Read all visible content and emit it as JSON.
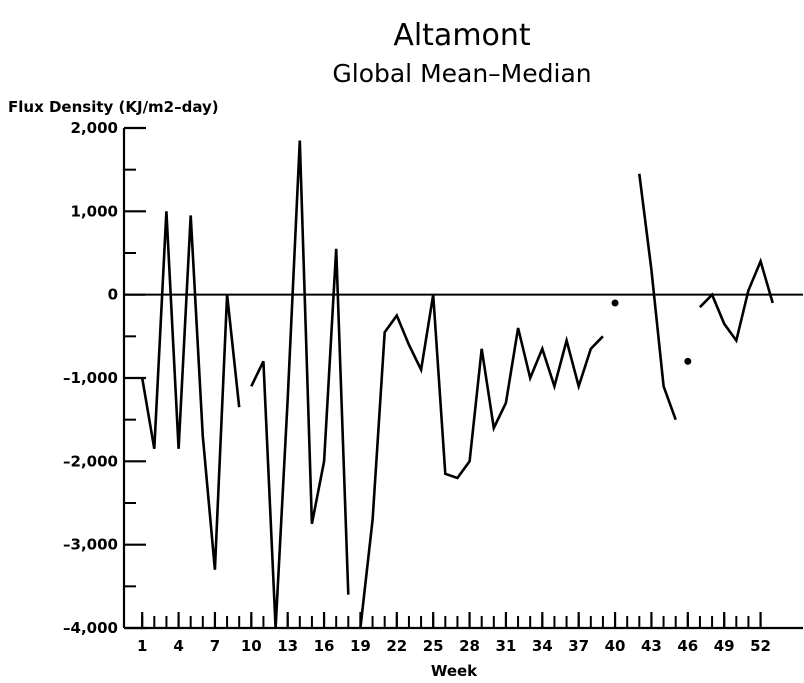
{
  "chart_data": {
    "type": "line",
    "title": "Altamont",
    "subtitle": "Global Mean–Median",
    "ylabel": "Flux Density (KJ/m2–day)",
    "xlabel": "Week",
    "xlim": [
      -0.5,
      55.5
    ],
    "ylim": [
      -4000,
      2000
    ],
    "y_ticks": [
      2000,
      1000,
      0,
      -1000,
      -2000,
      -3000,
      -4000
    ],
    "y_tick_labels": [
      "2,000",
      "1,000",
      "0",
      "–1,000",
      "–2,000",
      "–3,000",
      "–4,000"
    ],
    "x_ticks": [
      1,
      4,
      7,
      10,
      13,
      16,
      19,
      22,
      25,
      28,
      31,
      34,
      37,
      40,
      43,
      46,
      49,
      52
    ],
    "x_tick_labels": [
      "1",
      "4",
      "7",
      "10",
      "13",
      "16",
      "19",
      "22",
      "25",
      "28",
      "31",
      "34",
      "37",
      "40",
      "43",
      "46",
      "49",
      "52"
    ],
    "x_minor_ticks": [
      1,
      2,
      3,
      4,
      5,
      6,
      7,
      8,
      9,
      10,
      11,
      12,
      13,
      14,
      15,
      16,
      17,
      18,
      19,
      20,
      21,
      22,
      23,
      24,
      25,
      26,
      27,
      28,
      29,
      30,
      31,
      32,
      33,
      34,
      35,
      36,
      37,
      38,
      39,
      40,
      41,
      42,
      43,
      44,
      45,
      46,
      47,
      48,
      49,
      50,
      51,
      52
    ],
    "y_minor_ticks": [
      1500,
      500,
      -500,
      -1500,
      -2500,
      -3500
    ],
    "zero_line": true,
    "grid": false,
    "legend": "none",
    "line_color": "#000000",
    "series": [
      {
        "segments": [
          [
            [
              1,
              -1000
            ],
            [
              2,
              -1850
            ],
            [
              3,
              1000
            ],
            [
              4,
              -1850
            ],
            [
              5,
              950
            ],
            [
              6,
              -1700
            ],
            [
              7,
              -3300
            ],
            [
              8,
              0
            ],
            [
              9,
              -1350
            ]
          ],
          [
            [
              10,
              -1100
            ],
            [
              11,
              -800
            ],
            [
              12,
              -4000
            ],
            [
              13,
              -1250
            ],
            [
              14,
              1850
            ],
            [
              15,
              -2750
            ],
            [
              16,
              -2000
            ],
            [
              17,
              550
            ],
            [
              18,
              -3600
            ]
          ],
          [
            [
              19,
              -4000
            ],
            [
              20,
              -2700
            ],
            [
              21,
              -450
            ],
            [
              22,
              -250
            ],
            [
              23,
              -600
            ],
            [
              24,
              -900
            ],
            [
              25,
              0
            ],
            [
              26,
              -2150
            ],
            [
              27,
              -2200
            ],
            [
              28,
              -2000
            ],
            [
              29,
              -650
            ],
            [
              30,
              -1600
            ],
            [
              31,
              -1300
            ],
            [
              32,
              -400
            ],
            [
              33,
              -1000
            ],
            [
              34,
              -650
            ],
            [
              35,
              -1100
            ],
            [
              36,
              -550
            ],
            [
              37,
              -1100
            ],
            [
              38,
              -650
            ],
            [
              39,
              -500
            ]
          ],
          [
            [
              42,
              1450
            ],
            [
              43,
              300
            ],
            [
              44,
              -1100
            ],
            [
              45,
              -1500
            ]
          ],
          [
            [
              47,
              -150
            ],
            [
              48,
              0
            ],
            [
              49,
              -350
            ],
            [
              50,
              -550
            ],
            [
              51,
              50
            ],
            [
              52,
              400
            ],
            [
              53,
              -100
            ]
          ]
        ],
        "points": [
          [
            40,
            -100
          ],
          [
            46,
            -800
          ]
        ]
      }
    ]
  }
}
